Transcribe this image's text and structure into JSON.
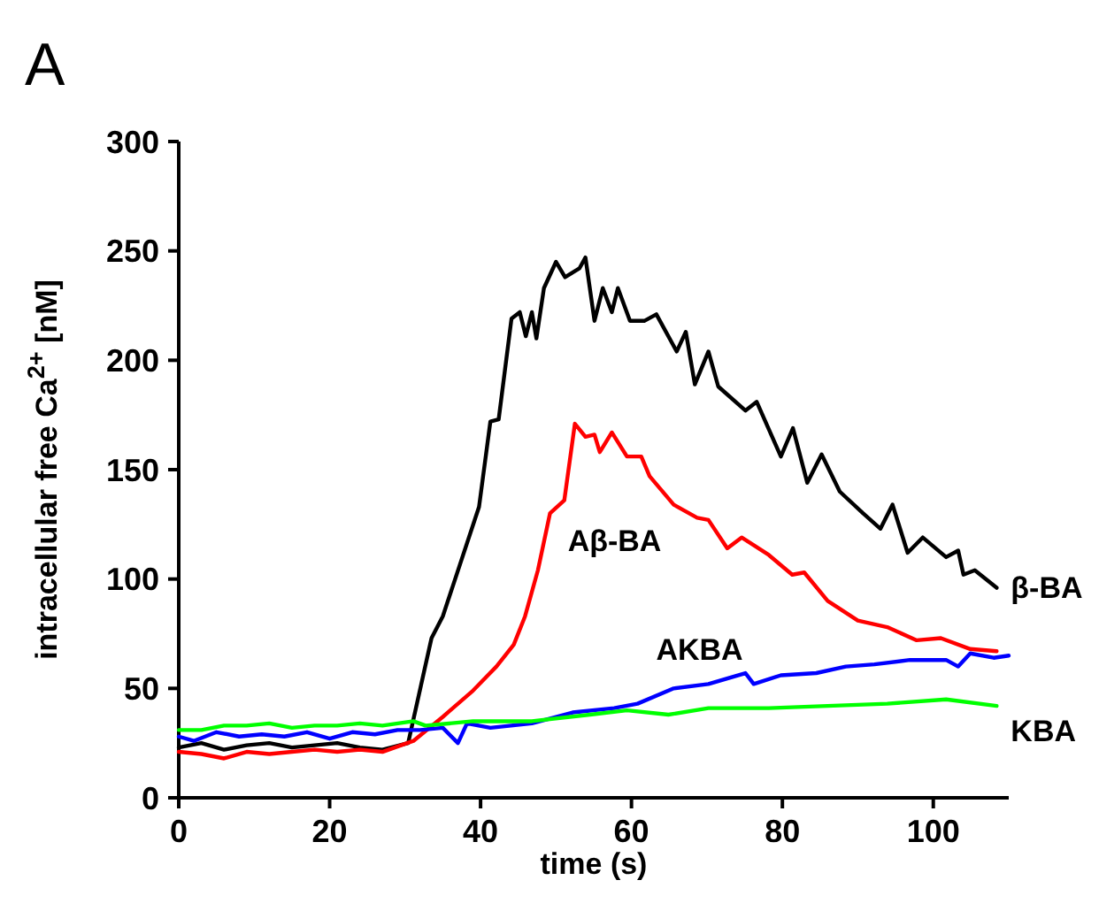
{
  "chart_data": {
    "type": "line",
    "xlabel": "time (s)",
    "ylabel": "intracellular free Ca$^{2+}$ [nM]",
    "xlim": [
      0,
      110
    ],
    "xticks": [
      0,
      20,
      40,
      60,
      80,
      100
    ],
    "ylim": [
      0,
      300
    ],
    "yticks": [
      0,
      50,
      100,
      150,
      200,
      250,
      300
    ],
    "grid": false,
    "marker": "none",
    "line_style": "solid",
    "annotations": [
      "A"
    ],
    "series": [
      {
        "name": "β-BA",
        "color": "#000000",
        "x": [
          0,
          3,
          6,
          9,
          12,
          15,
          18,
          21,
          24,
          27,
          30.4,
          33.5,
          35,
          37.4,
          39.8,
          41.3,
          42.4,
          44.1,
          45.2,
          46,
          46.8,
          47.4,
          48.4,
          50,
          51.2,
          53.1,
          53.9,
          55.1,
          56.2,
          57.4,
          58.2,
          59.8,
          61.7,
          63.3,
          66,
          67.2,
          68.4,
          70.2,
          71.5,
          75.1,
          76.6,
          79.8,
          81.4,
          83.3,
          85.2,
          87.6,
          90.7,
          93,
          94.6,
          96.6,
          98.6,
          101.7,
          103.3,
          104,
          105.5,
          108.4
        ],
        "values": [
          23,
          25,
          22,
          24,
          25,
          23,
          24,
          25,
          23,
          22,
          25,
          73,
          83,
          108,
          133,
          172,
          173,
          219,
          222,
          211,
          222,
          210,
          233,
          245,
          238,
          242,
          247,
          218,
          233,
          222,
          233,
          218,
          218,
          221,
          204,
          213,
          189,
          204,
          188,
          177,
          181,
          156,
          169,
          144,
          157,
          140,
          130,
          123,
          134,
          112,
          119,
          110,
          113,
          102,
          104,
          96
        ]
      },
      {
        "name": "Aβ-BA",
        "color": "#ff0000",
        "x": [
          0,
          3,
          6,
          9,
          12,
          15,
          18,
          21,
          24,
          27,
          31.1,
          35,
          39,
          42.1,
          44.4,
          45.9,
          47.6,
          49.2,
          51.1,
          52.5,
          53.9,
          55.1,
          55.8,
          57.4,
          59.4,
          61.3,
          62.4,
          65.6,
          68.7,
          70.2,
          72.7,
          74.6,
          78.2,
          81.3,
          82.9,
          86,
          90,
          93.9,
          97.8,
          101,
          104.9,
          108.4
        ],
        "values": [
          21,
          20,
          18,
          21,
          20,
          21,
          22,
          21,
          22,
          21,
          26,
          37,
          49,
          60,
          70,
          83,
          104,
          130,
          136,
          171,
          165,
          166,
          158,
          167,
          156,
          156,
          147,
          134,
          128,
          127,
          114,
          119,
          111,
          102,
          103,
          90,
          81,
          78,
          72,
          73,
          68,
          67
        ]
      },
      {
        "name": "AKBA",
        "color": "#0000ff",
        "x": [
          0,
          2,
          5,
          8,
          11,
          14,
          17,
          20,
          23,
          26,
          29,
          32,
          35,
          37,
          38.2,
          41.3,
          46.8,
          52.2,
          57.7,
          60.8,
          65.6,
          70.2,
          75.1,
          76.2,
          79.8,
          84.5,
          88.4,
          92.2,
          96.9,
          101.7,
          103.3,
          104.9,
          108,
          110
        ],
        "values": [
          28,
          26,
          30,
          28,
          29,
          28,
          30,
          27,
          30,
          29,
          31,
          31,
          32,
          25,
          34,
          32,
          34,
          39,
          41,
          43,
          50,
          52,
          57,
          52,
          56,
          57,
          60,
          61,
          63,
          63,
          60,
          66,
          64,
          65
        ]
      },
      {
        "name": "KBA",
        "color": "#00ff00",
        "x": [
          0,
          3,
          6,
          9,
          12,
          15,
          18,
          21,
          24,
          27,
          31.1,
          32.7,
          39,
          46.8,
          54.5,
          59.4,
          64.9,
          70.2,
          78.2,
          86,
          93.9,
          101.7,
          108.4
        ],
        "values": [
          31,
          31,
          33,
          33,
          34,
          32,
          33,
          33,
          34,
          33,
          35,
          33,
          35,
          35,
          38,
          40,
          38,
          41,
          41,
          42,
          43,
          45,
          42
        ]
      }
    ]
  }
}
